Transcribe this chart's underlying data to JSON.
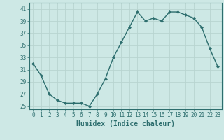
{
  "xlabel": "Humidex (Indice chaleur)",
  "x": [
    0,
    1,
    2,
    3,
    4,
    5,
    6,
    7,
    8,
    9,
    10,
    11,
    12,
    13,
    14,
    15,
    16,
    17,
    18,
    19,
    20,
    21,
    22,
    23
  ],
  "y": [
    32,
    30,
    27,
    26,
    25.5,
    25.5,
    25.5,
    25,
    27,
    29.5,
    33,
    35.5,
    38,
    40.5,
    39,
    39.5,
    39,
    40.5,
    40.5,
    40,
    39.5,
    38,
    34.5,
    31.5
  ],
  "line_color": "#2d6e6e",
  "marker": "D",
  "marker_size": 2.0,
  "line_width": 1.0,
  "bg_color": "#cde8e5",
  "grid_color": "#b8d4d0",
  "yticks": [
    25,
    27,
    29,
    31,
    33,
    35,
    37,
    39,
    41
  ],
  "xtick_labels": [
    "0",
    "1",
    "2",
    "3",
    "4",
    "5",
    "6",
    "7",
    "8",
    "9",
    "10",
    "11",
    "12",
    "13",
    "14",
    "15",
    "16",
    "17",
    "18",
    "19",
    "20",
    "21",
    "22",
    "23"
  ],
  "ylim": [
    24.5,
    42.0
  ],
  "xlim": [
    -0.5,
    23.5
  ],
  "tick_fontsize": 5.5,
  "xlabel_fontsize": 7.0,
  "axis_color": "#2d6e6e",
  "spine_color": "#2d6e6e"
}
